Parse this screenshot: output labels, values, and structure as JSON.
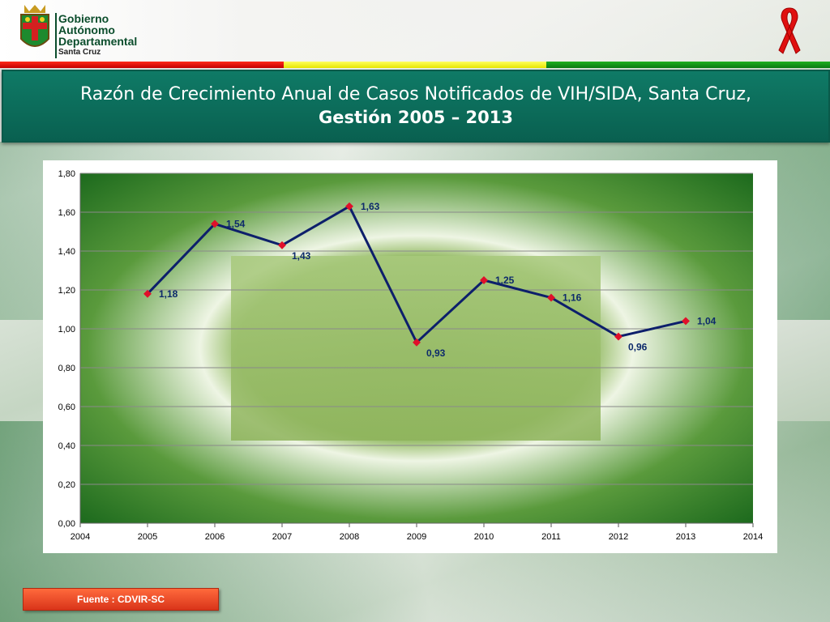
{
  "header": {
    "logo_lines": [
      "Gobierno",
      "Autónomo",
      "Departamental",
      "Santa Cruz"
    ],
    "ribbon_icon": "awareness-ribbon-icon",
    "stripe_colors": [
      "#e21a0f",
      "#f5f52a",
      "#12951a"
    ]
  },
  "title": {
    "line1": "Razón de Crecimiento Anual de Casos Notificados de VIH/SIDA, Santa Cruz,",
    "line2": "Gestión 2005 – 2013"
  },
  "footer": {
    "source": "Fuente : CDVIR-SC"
  },
  "chart_data": {
    "type": "line",
    "x": [
      2005,
      2006,
      2007,
      2008,
      2009,
      2010,
      2011,
      2012,
      2013
    ],
    "series": [
      {
        "values": [
          1.18,
          1.54,
          1.43,
          1.63,
          0.93,
          1.25,
          1.16,
          0.96,
          1.04
        ],
        "labels": [
          "1,18",
          "1,54",
          "1,43",
          "1,63",
          "0,93",
          "1,25",
          "1,16",
          "0,96",
          "1,04"
        ],
        "color": "#0d1f6b",
        "marker_color": "#e0102a"
      }
    ],
    "xlim": [
      2004,
      2014
    ],
    "ylim": [
      0,
      1.8
    ],
    "xticks": [
      "2004",
      "2005",
      "2006",
      "2007",
      "2008",
      "2009",
      "2010",
      "2011",
      "2012",
      "2013",
      "2014"
    ],
    "yticks": [
      "0,00",
      "0,20",
      "0,40",
      "0,60",
      "0,80",
      "1,00",
      "1,20",
      "1,40",
      "1,60",
      "1,80"
    ],
    "grid": true,
    "plot_background": "green-gradient"
  }
}
